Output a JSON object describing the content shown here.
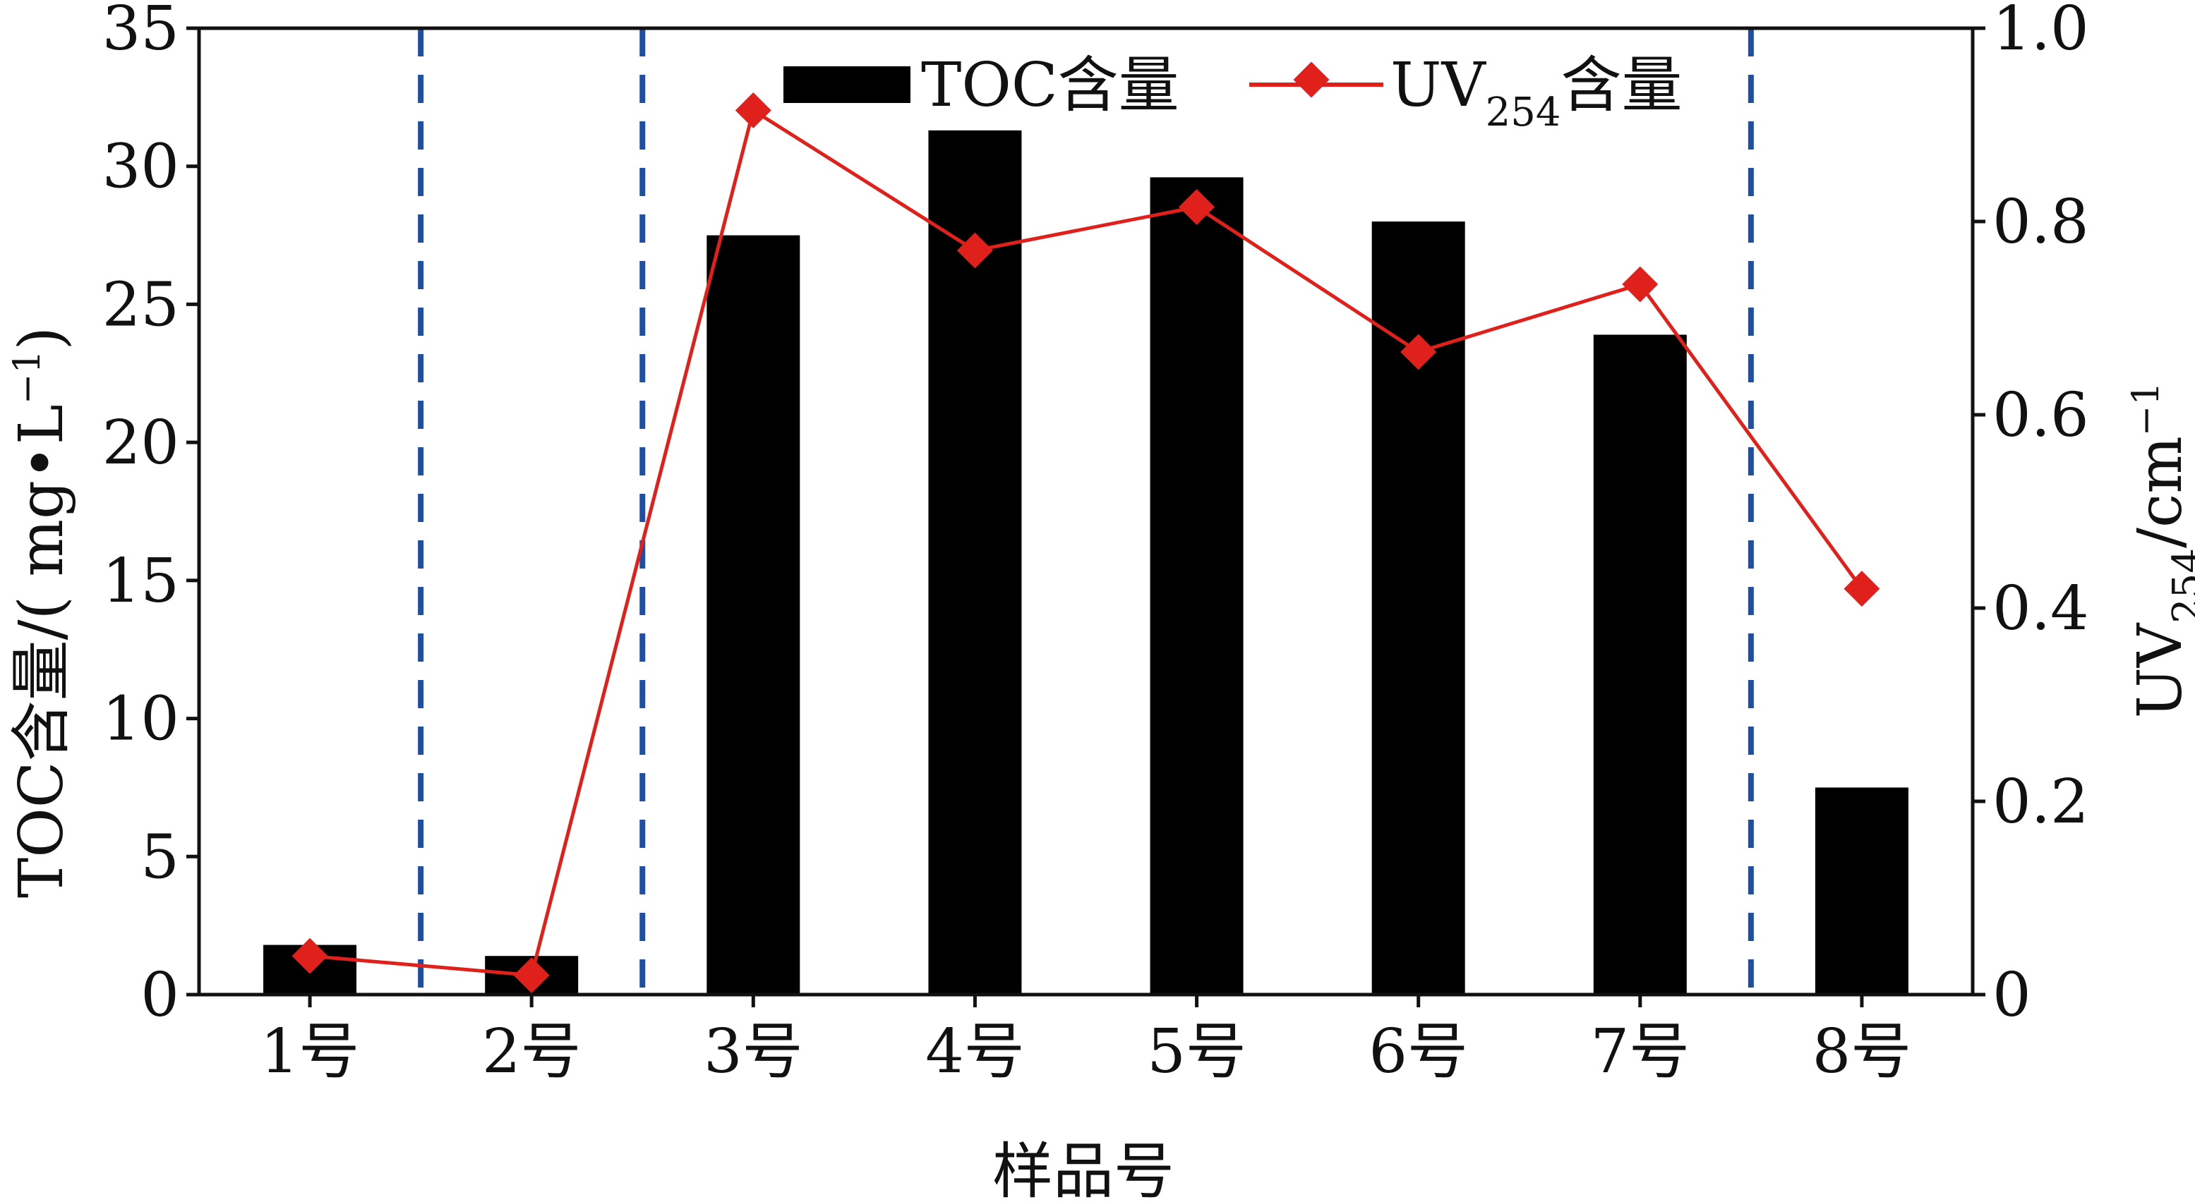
{
  "chart_data": {
    "type": "bar",
    "categories": [
      "1号",
      "2号",
      "3号",
      "4号",
      "5号",
      "6号",
      "7号",
      "8号"
    ],
    "series": [
      {
        "name": "TOC含量",
        "type": "bar",
        "axis": "left",
        "color": "#000000",
        "values": [
          1.8,
          1.4,
          27.5,
          31.3,
          29.6,
          28.0,
          23.9,
          7.5
        ]
      },
      {
        "name": "UV254含量",
        "type": "line",
        "axis": "right",
        "color": "#e0201b",
        "marker": "diamond",
        "values": [
          0.04,
          0.02,
          0.915,
          0.77,
          0.815,
          0.665,
          0.735,
          0.42
        ]
      }
    ],
    "xlabel": "样品号",
    "ylabel_left": {
      "main": "TOC含量/( mg",
      "dot": "•",
      "unit": "L",
      "exp": "−1",
      "close": ")"
    },
    "ylabel_right": {
      "main": "UV",
      "sub": "254",
      "unit": "/cm",
      "exp": "−1"
    },
    "legend": {
      "bar_label": "TOC含量",
      "line_label_main": "UV",
      "line_label_sub": "254",
      "line_label_tail": "含量",
      "position": "top-center"
    },
    "y_left": {
      "min": 0,
      "max": 35,
      "ticks": [
        0,
        5,
        10,
        15,
        20,
        25,
        30,
        35
      ]
    },
    "y_right": {
      "min": 0,
      "max": 1.0,
      "ticks": [
        "0",
        "0.2",
        "0.4",
        "0.6",
        "0.8",
        "1.0"
      ]
    },
    "group_dividers": {
      "after_categories": [
        1,
        2,
        7
      ],
      "color": "#1f4fa0",
      "style": "dashed"
    },
    "grid": false
  }
}
